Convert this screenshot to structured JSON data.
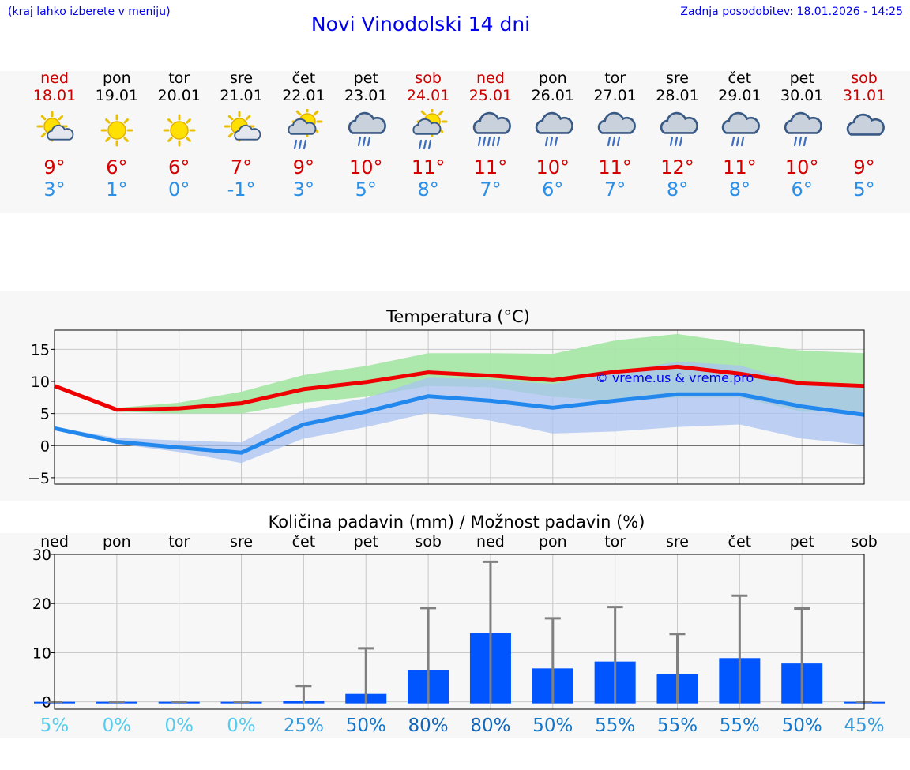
{
  "header": {
    "hint": "(kraj lahko izberete v meniju)",
    "title": "Novi Vinodolski 14 dni",
    "updated": "Zadnja posodobitev: 18.01.2026 - 14:25"
  },
  "days": [
    {
      "name": "ned",
      "date": "18.01",
      "weekend": true,
      "icon": "sun-cloud-icon",
      "max": "9°",
      "min": "3°"
    },
    {
      "name": "pon",
      "date": "19.01",
      "weekend": false,
      "icon": "sun-icon",
      "max": "6°",
      "min": "1°"
    },
    {
      "name": "tor",
      "date": "20.01",
      "weekend": false,
      "icon": "sun-icon",
      "max": "6°",
      "min": "0°"
    },
    {
      "name": "sre",
      "date": "21.01",
      "weekend": false,
      "icon": "sun-cloud-icon",
      "max": "7°",
      "min": "-1°"
    },
    {
      "name": "čet",
      "date": "22.01",
      "weekend": false,
      "icon": "sun-cloud-rain-icon",
      "max": "9°",
      "min": "3°"
    },
    {
      "name": "pet",
      "date": "23.01",
      "weekend": false,
      "icon": "cloud-rain-icon",
      "max": "10°",
      "min": "5°"
    },
    {
      "name": "sob",
      "date": "24.01",
      "weekend": true,
      "icon": "sun-cloud-rain-icon",
      "max": "11°",
      "min": "8°"
    },
    {
      "name": "ned",
      "date": "25.01",
      "weekend": true,
      "icon": "cloud-heavy-rain-icon",
      "max": "11°",
      "min": "7°"
    },
    {
      "name": "pon",
      "date": "26.01",
      "weekend": false,
      "icon": "cloud-rain-icon",
      "max": "10°",
      "min": "6°"
    },
    {
      "name": "tor",
      "date": "27.01",
      "weekend": false,
      "icon": "cloud-rain-icon",
      "max": "11°",
      "min": "7°"
    },
    {
      "name": "sre",
      "date": "28.01",
      "weekend": false,
      "icon": "cloud-rain-icon",
      "max": "12°",
      "min": "8°"
    },
    {
      "name": "čet",
      "date": "29.01",
      "weekend": false,
      "icon": "cloud-rain-icon",
      "max": "11°",
      "min": "8°"
    },
    {
      "name": "pet",
      "date": "30.01",
      "weekend": false,
      "icon": "cloud-rain-icon",
      "max": "10°",
      "min": "6°"
    },
    {
      "name": "sob",
      "date": "31.01",
      "weekend": true,
      "icon": "cloud-icon",
      "max": "9°",
      "min": "5°"
    }
  ],
  "colors": {
    "max_line": "#ee0000",
    "min_line": "#2288ee",
    "max_band": "#a8e6a8",
    "min_band": "#a9c3f2",
    "bar": "#0055ff",
    "whisker": "#808080",
    "title_blue": "#0000ee"
  },
  "chart_data": [
    {
      "type": "line",
      "title": "Temperatura (°C)",
      "watermark": "© vreme.us & vreme.pro",
      "x": [
        0,
        1,
        2,
        3,
        4,
        5,
        6,
        7,
        8,
        9,
        10,
        11,
        12,
        13
      ],
      "ylim": [
        -6,
        18
      ],
      "yticks": [
        15,
        10,
        5,
        0,
        -5
      ],
      "ytick_labels": [
        "15",
        "10",
        "5",
        "0",
        "−5"
      ],
      "grid": true,
      "series": [
        {
          "name": "max",
          "values": [
            9.3,
            5.6,
            5.8,
            6.6,
            8.8,
            9.9,
            11.4,
            10.9,
            10.2,
            11.5,
            12.3,
            11.2,
            9.7,
            9.3
          ],
          "band_low": [
            9.1,
            5.3,
            5.0,
            5.0,
            6.7,
            7.6,
            9.3,
            9.1,
            7.6,
            7.0,
            7.5,
            7.5,
            5.3,
            5.3
          ],
          "band_high": [
            9.5,
            5.9,
            6.7,
            8.4,
            11.0,
            12.4,
            14.4,
            14.4,
            14.3,
            16.4,
            17.4,
            16.0,
            14.8,
            14.4
          ]
        },
        {
          "name": "min",
          "values": [
            2.7,
            0.6,
            -0.3,
            -1.1,
            3.3,
            5.3,
            7.7,
            7.0,
            5.9,
            7.0,
            8.0,
            8.0,
            6.1,
            4.8
          ],
          "band_low": [
            2.5,
            0.3,
            -1.0,
            -2.7,
            1.1,
            2.9,
            5.1,
            3.9,
            1.9,
            2.2,
            2.9,
            3.3,
            1.1,
            0.1
          ],
          "band_high": [
            2.9,
            1.2,
            0.8,
            0.5,
            5.6,
            7.4,
            10.6,
            10.3,
            9.6,
            11.4,
            13.1,
            12.5,
            9.8,
            9.6
          ]
        }
      ]
    },
    {
      "type": "bar",
      "title": "Količina padavin (mm) / Možnost padavin (%)",
      "categories": [
        "ned",
        "pon",
        "tor",
        "sre",
        "čet",
        "pet",
        "sob",
        "ned",
        "pon",
        "tor",
        "sre",
        "čet",
        "pet",
        "sob"
      ],
      "ylim": [
        -1.5,
        30
      ],
      "yticks": [
        30,
        20,
        10,
        0
      ],
      "ytick_labels": [
        "30",
        "20",
        "10",
        "0"
      ],
      "values": [
        0,
        0,
        0,
        0,
        0.2,
        1.6,
        6.5,
        14.0,
        6.8,
        8.2,
        5.6,
        8.9,
        7.8,
        0
      ],
      "error_high": [
        0,
        0,
        0,
        0,
        3.2,
        10.9,
        19.1,
        28.5,
        17.0,
        19.3,
        13.8,
        21.6,
        19.0,
        0
      ],
      "probability": [
        "5%",
        "0%",
        "0%",
        "0%",
        "25%",
        "50%",
        "80%",
        "80%",
        "50%",
        "55%",
        "55%",
        "55%",
        "50%",
        "45%"
      ],
      "probability_colors": [
        "#55ccee",
        "#55ccee",
        "#55ccee",
        "#55ccee",
        "#3399dd",
        "#1177cc",
        "#1166bb",
        "#1166bb",
        "#1177cc",
        "#1177cc",
        "#1177cc",
        "#1177cc",
        "#1177cc",
        "#3399dd"
      ]
    }
  ]
}
